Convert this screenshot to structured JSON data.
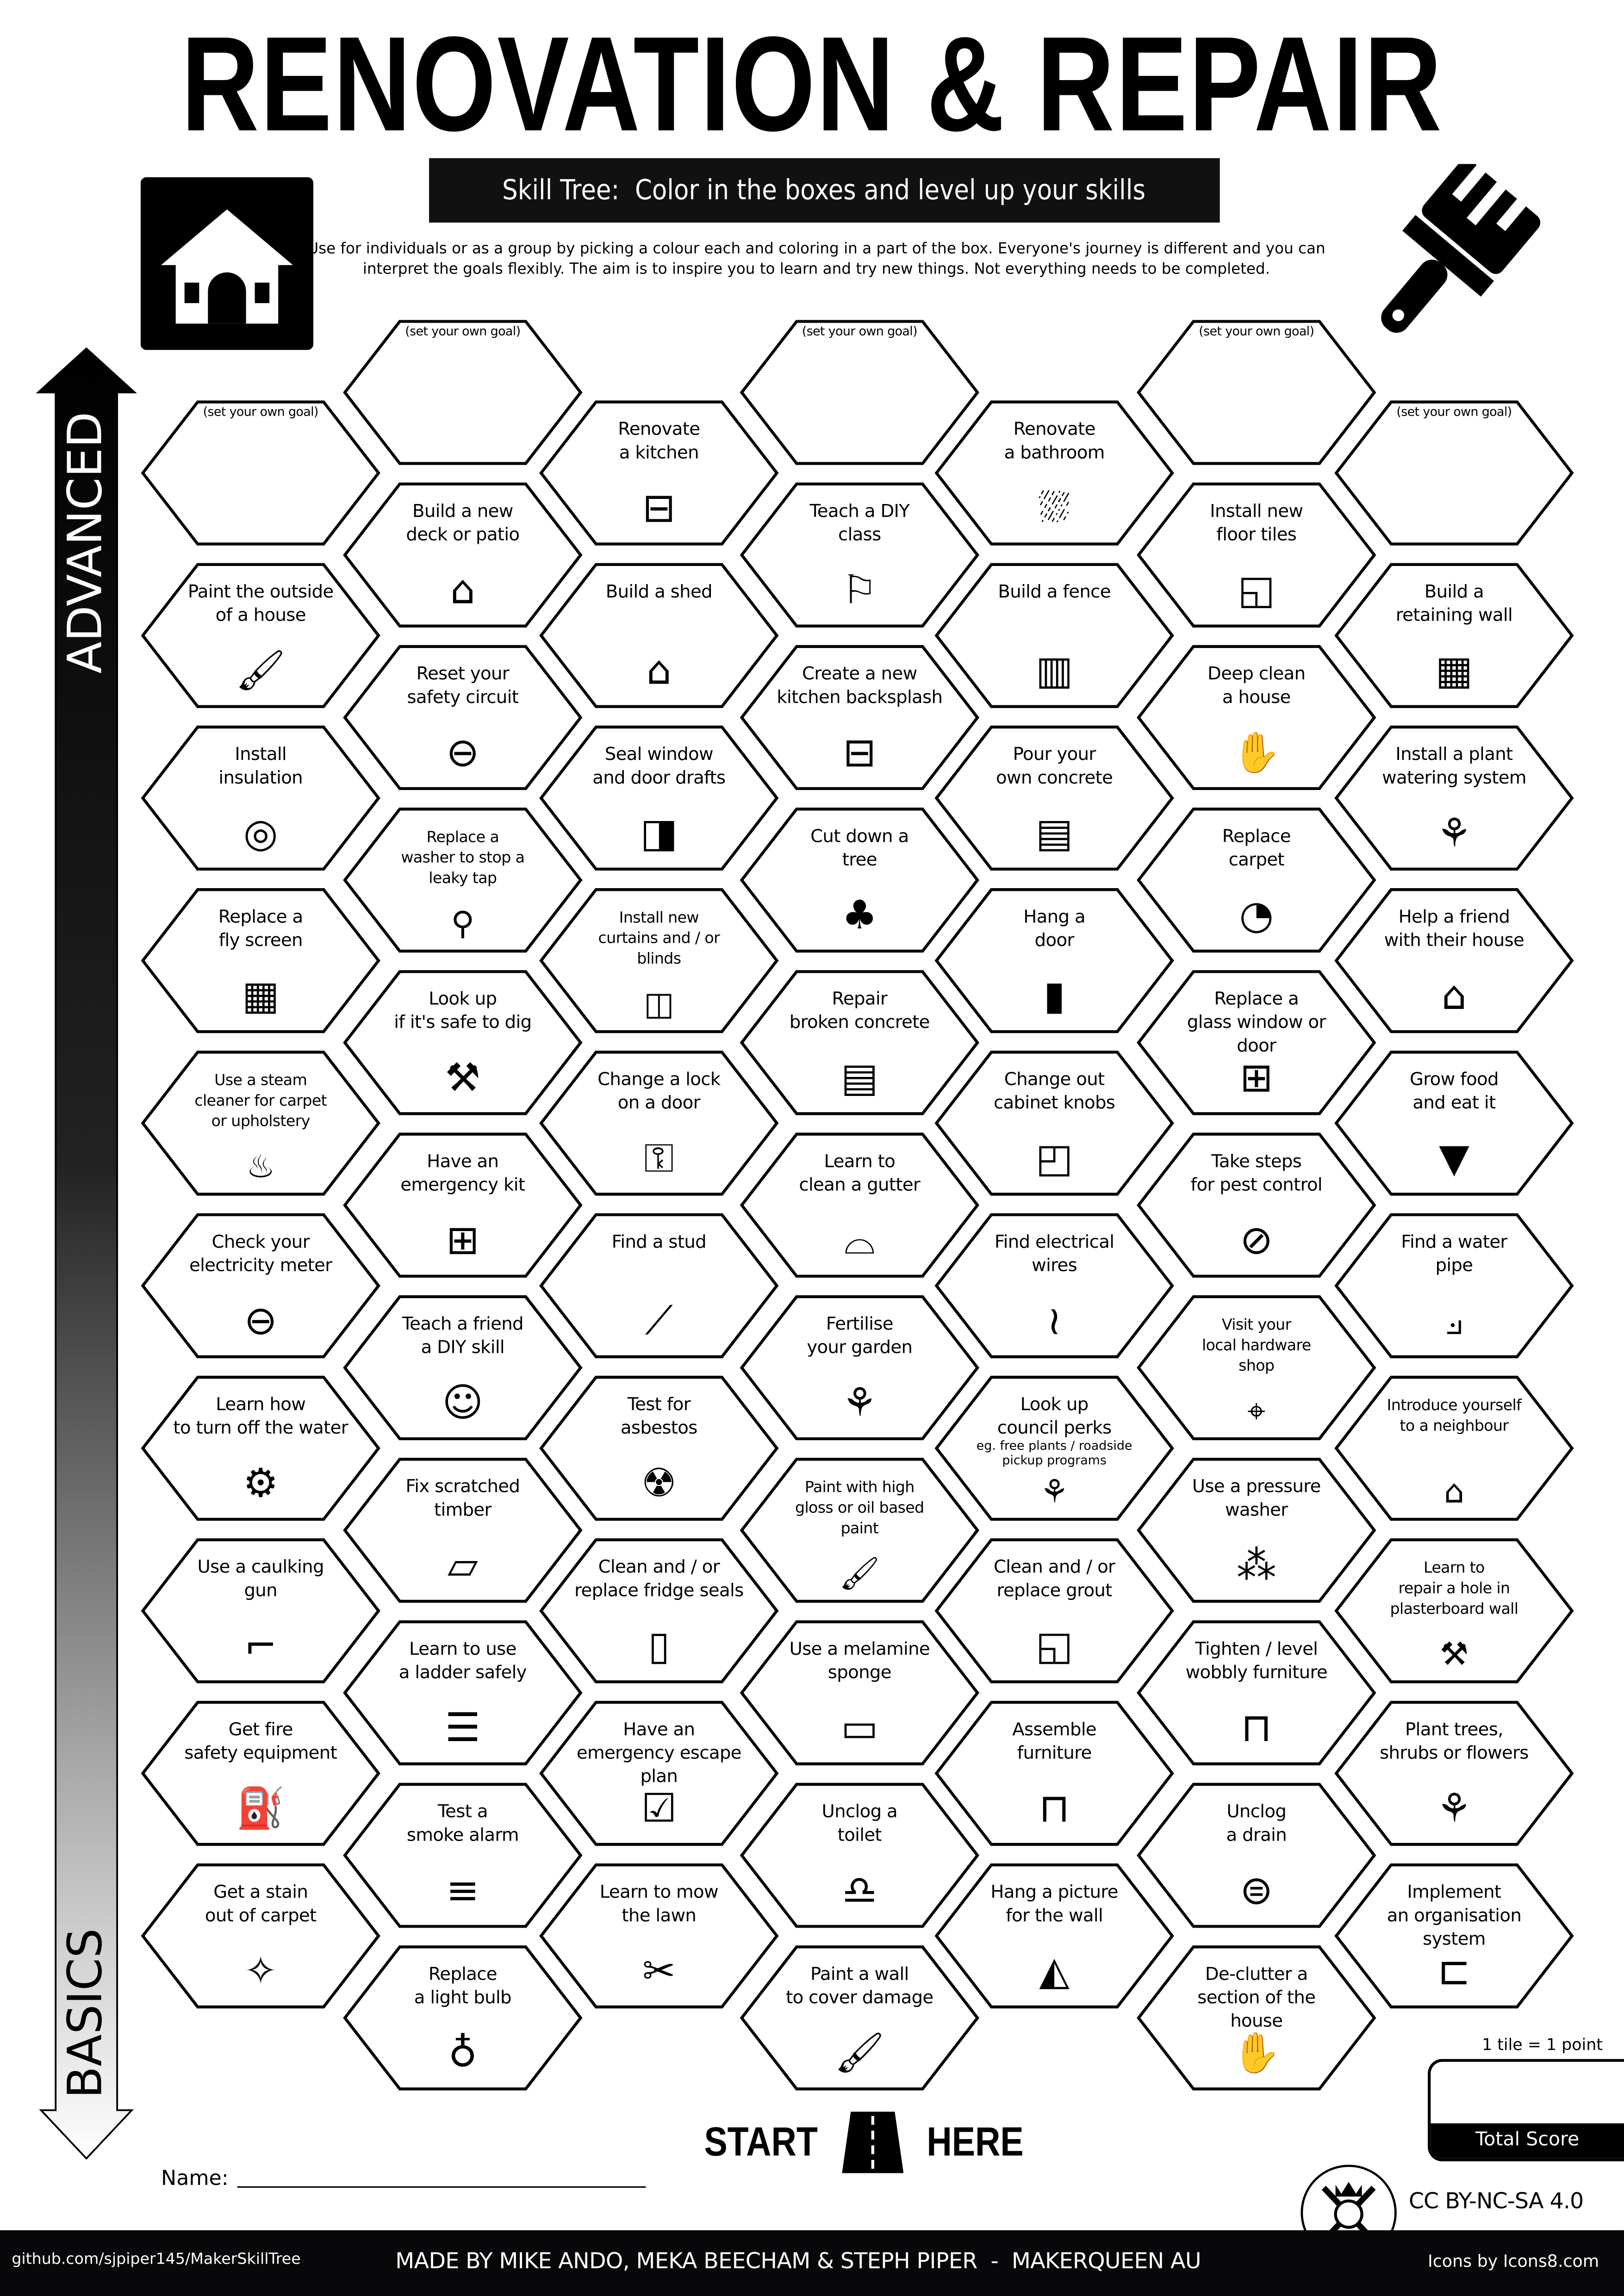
{
  "title": "RENOVATION & REPAIR",
  "subtitle": "Skill Tree:  Color in the boxes and level up your skills",
  "intro": "Use for individuals or as a group by picking a colour each and coloring in a part of the box.  Everyone's journey is different and you can interpret the goals flexibly.  The aim is to inspire you to learn and try new things. Not everything needs to be completed.",
  "axis": {
    "top": "ADVANCED",
    "bottom": "BASICS"
  },
  "columns": [
    [
      {
        "label": "(set your own goal)",
        "goal": true
      },
      {
        "label": "Paint the outside\nof a house",
        "icon": "paintbrush"
      },
      {
        "label": "Install\ninsulation",
        "icon": "insulation-roll"
      },
      {
        "label": "Replace a\nfly screen",
        "icon": "grid"
      },
      {
        "label": "Use a steam\ncleaner for carpet\nor upholstery",
        "icon": "steam",
        "small": true
      },
      {
        "label": "Check your\nelectricity meter",
        "icon": "gauge"
      },
      {
        "label": "Learn how\nto turn off the water",
        "icon": "water-valve"
      },
      {
        "label": "Use a caulking\ngun",
        "icon": "caulk-gun"
      },
      {
        "label": "Get fire\nsafety equipment",
        "icon": "fire-extinguisher"
      },
      {
        "label": "Get a stain\nout of carpet",
        "icon": "stain"
      }
    ],
    [
      {
        "label": "(set your own goal)",
        "goal": true
      },
      {
        "label": "Build a new\ndeck or patio",
        "icon": "deck"
      },
      {
        "label": "Reset your\nsafety circuit",
        "icon": "gauge"
      },
      {
        "label": "Replace a\nwasher to stop a\nleaky tap",
        "icon": "tap",
        "small": true
      },
      {
        "label": "Look up\nif it's safe to dig",
        "icon": "shovel"
      },
      {
        "label": "Have an\nemergency kit",
        "icon": "first-aid"
      },
      {
        "label": "Teach a friend\na DIY skill",
        "icon": "people"
      },
      {
        "label": "Fix scratched\ntimber",
        "icon": "timber"
      },
      {
        "label": "Learn to use\na ladder safely",
        "icon": "ladder"
      },
      {
        "label": "Test a\nsmoke alarm",
        "icon": "smoke-alarm"
      },
      {
        "label": "Replace\na light bulb",
        "icon": "light-bulb"
      }
    ],
    [
      {
        "label": "Renovate\na kitchen",
        "icon": "kitchen"
      },
      {
        "label": "Build a shed",
        "icon": "shed"
      },
      {
        "label": "Seal window\nand door drafts",
        "icon": "draft-door"
      },
      {
        "label": "Install new\ncurtains and / or\nblinds",
        "icon": "curtains",
        "small": true
      },
      {
        "label": "Change a lock\non a door",
        "icon": "lock"
      },
      {
        "label": "Find a stud",
        "icon": "nail"
      },
      {
        "label": "Test for\nasbestos",
        "icon": "mask"
      },
      {
        "label": "Clean and / or\nreplace fridge seals",
        "icon": "fridge"
      },
      {
        "label": "Have an\nemergency escape\nplan",
        "icon": "checklist"
      },
      {
        "label": "Learn to mow\nthe lawn",
        "icon": "mower"
      }
    ],
    [
      {
        "label": "(set your own goal)",
        "goal": true
      },
      {
        "label": "Teach a DIY\nclass",
        "icon": "teacher"
      },
      {
        "label": "Create a new\nkitchen backsplash",
        "icon": "kitchen"
      },
      {
        "label": "Cut down a\ntree",
        "icon": "stump"
      },
      {
        "label": "Repair\nbroken concrete",
        "icon": "concrete"
      },
      {
        "label": "Learn to\nclean a gutter",
        "icon": "gutter"
      },
      {
        "label": "Fertilise\nyour garden",
        "icon": "sprout"
      },
      {
        "label": "Paint with high\ngloss or oil based\npaint",
        "icon": "paintbrush",
        "small": true
      },
      {
        "label": "Use a melamine\nsponge",
        "icon": "sponge"
      },
      {
        "label": "Unclog a\ntoilet",
        "icon": "toilet"
      },
      {
        "label": "Paint a wall\nto cover damage",
        "icon": "paintbrush"
      }
    ],
    [
      {
        "label": "Renovate\na bathroom",
        "icon": "bathtub"
      },
      {
        "label": "Build a fence",
        "icon": "fence"
      },
      {
        "label": "Pour your\nown concrete",
        "icon": "concrete"
      },
      {
        "label": "Hang a\ndoor",
        "icon": "door"
      },
      {
        "label": "Change out\ncabinet knobs",
        "icon": "cabinet"
      },
      {
        "label": "Find electrical\nwires",
        "icon": "wires"
      },
      {
        "label": "Look up\ncouncil perks",
        "sub": "eg. free plants / roadside\npickup programs",
        "icon": "sprout"
      },
      {
        "label": "Clean and / or\nreplace grout",
        "icon": "tile"
      },
      {
        "label": "Assemble\nfurniture",
        "icon": "table"
      },
      {
        "label": "Hang a picture\nfor the wall",
        "icon": "picture"
      }
    ],
    [
      {
        "label": "(set your own goal)",
        "goal": true
      },
      {
        "label": "Install new\nfloor tiles",
        "icon": "tile"
      },
      {
        "label": "Deep clean\na house",
        "icon": "clean-hands"
      },
      {
        "label": "Replace\ncarpet",
        "icon": "carpet-roll"
      },
      {
        "label": "Replace a\nglass window or door",
        "icon": "window"
      },
      {
        "label": "Take steps\nfor pest control",
        "icon": "no-bug"
      },
      {
        "label": "Visit your\nlocal hardware\nshop",
        "icon": "location-pin",
        "small": true
      },
      {
        "label": "Use a pressure\nwasher",
        "icon": "sprinkler"
      },
      {
        "label": "Tighten / level\nwobbly furniture",
        "icon": "table"
      },
      {
        "label": "Unclog\na drain",
        "icon": "drain"
      },
      {
        "label": "De-clutter a\nsection of the house",
        "icon": "clean-hands"
      }
    ],
    [
      {
        "label": "(set your own goal)",
        "goal": true
      },
      {
        "label": "Build a\nretaining wall",
        "icon": "brick-wall"
      },
      {
        "label": "Install a plant\nwatering system",
        "icon": "sprout"
      },
      {
        "label": "Help a friend\nwith their house",
        "icon": "helping-house"
      },
      {
        "label": "Grow food\nand eat it",
        "icon": "carrot"
      },
      {
        "label": "Find a water\npipe",
        "icon": "pipe"
      },
      {
        "label": "Introduce yourself\nto a neighbour",
        "icon": "helping-house",
        "small": true
      },
      {
        "label": "Learn to\nrepair a hole in\nplasterboard wall",
        "icon": "plasterer",
        "small": true
      },
      {
        "label": "Plant trees,\nshrubs or flowers",
        "icon": "sprout"
      },
      {
        "label": "Implement\nan organisation\nsystem",
        "icon": "shelf"
      }
    ]
  ],
  "start": {
    "left": "START",
    "right": "HERE"
  },
  "name_label": "Name:",
  "score": {
    "note": "1 tile = 1 point",
    "label": "Total Score"
  },
  "license": "CC BY-NC-SA 4.0",
  "footer": {
    "left": "github.com/sjpiper145/MakerSkillTree",
    "center": "MADE BY MIKE ANDO, MEKA BEECHAM & STEPH PIPER  -  MAKERQUEEN AU",
    "right": "Icons by Icons8.com"
  },
  "icons": {
    "header_left": "house-icon",
    "header_right": "paintbrush-icon",
    "logo": "makerqueen-logo"
  }
}
